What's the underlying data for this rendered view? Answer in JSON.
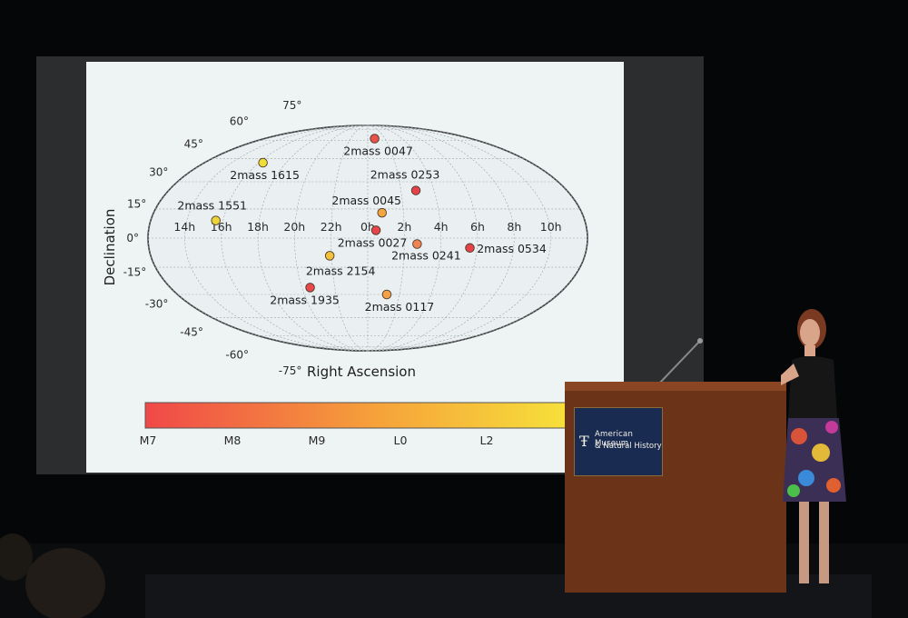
{
  "slide": {
    "ylabel": "Declination",
    "xlabel": "Right Ascension"
  },
  "chart_data": {
    "type": "scatter",
    "projection": "mollweide",
    "title": "",
    "xlabel": "Right Ascension",
    "ylabel": "Declination",
    "grid": true,
    "x_ticks": [
      "14h",
      "16h",
      "18h",
      "20h",
      "22h",
      "0h",
      "2h",
      "4h",
      "6h",
      "8h",
      "10h"
    ],
    "y_ticks": [
      "75°",
      "60°",
      "45°",
      "30°",
      "15°",
      "0°",
      "-15°",
      "-30°",
      "-45°",
      "-60°",
      "-75°"
    ],
    "colorbar": {
      "labels": [
        "M7",
        "M8",
        "M9",
        "L0",
        "L2"
      ],
      "colors": [
        "#f04848",
        "#f6a33a",
        "#f6e23a"
      ]
    },
    "points": [
      {
        "label": "2mass 0047",
        "ra_h": 0.8,
        "dec": 62,
        "spectral": "M7",
        "color": "#e9524a"
      },
      {
        "label": "2mass 1615",
        "ra_h": 16.3,
        "dec": 42,
        "spectral": "L3",
        "color": "#f0dd35"
      },
      {
        "label": "2mass 0253",
        "ra_h": 2.9,
        "dec": 25,
        "spectral": "M7",
        "color": "#e3424a"
      },
      {
        "label": "2mass 0045",
        "ra_h": 0.8,
        "dec": 13,
        "spectral": "M9",
        "color": "#f3a53e"
      },
      {
        "label": "2mass 1551",
        "ra_h": 15.6,
        "dec": 9,
        "spectral": "L3",
        "color": "#efd438"
      },
      {
        "label": "2mass 0027",
        "ra_h": 0.45,
        "dec": 4,
        "spectral": "M7",
        "color": "#e8454a"
      },
      {
        "label": "2mass 0241",
        "ra_h": 2.7,
        "dec": -3,
        "spectral": "M8",
        "color": "#f08450"
      },
      {
        "label": "2mass 0534",
        "ra_h": 5.6,
        "dec": -5,
        "spectral": "M7",
        "color": "#e5424a"
      },
      {
        "label": "2mass 2154",
        "ra_h": 21.9,
        "dec": -9,
        "spectral": "L1",
        "color": "#f3c13a"
      },
      {
        "label": "2mass 1935",
        "ra_h": 20.5,
        "dec": -26,
        "spectral": "M7",
        "color": "#e9474a"
      },
      {
        "label": "2mass 0117",
        "ra_h": 1.2,
        "dec": -30,
        "spectral": "M9",
        "color": "#f4a048"
      }
    ]
  },
  "podium": {
    "sign_line1": "American Museum",
    "sign_line2": "& Natural History"
  }
}
